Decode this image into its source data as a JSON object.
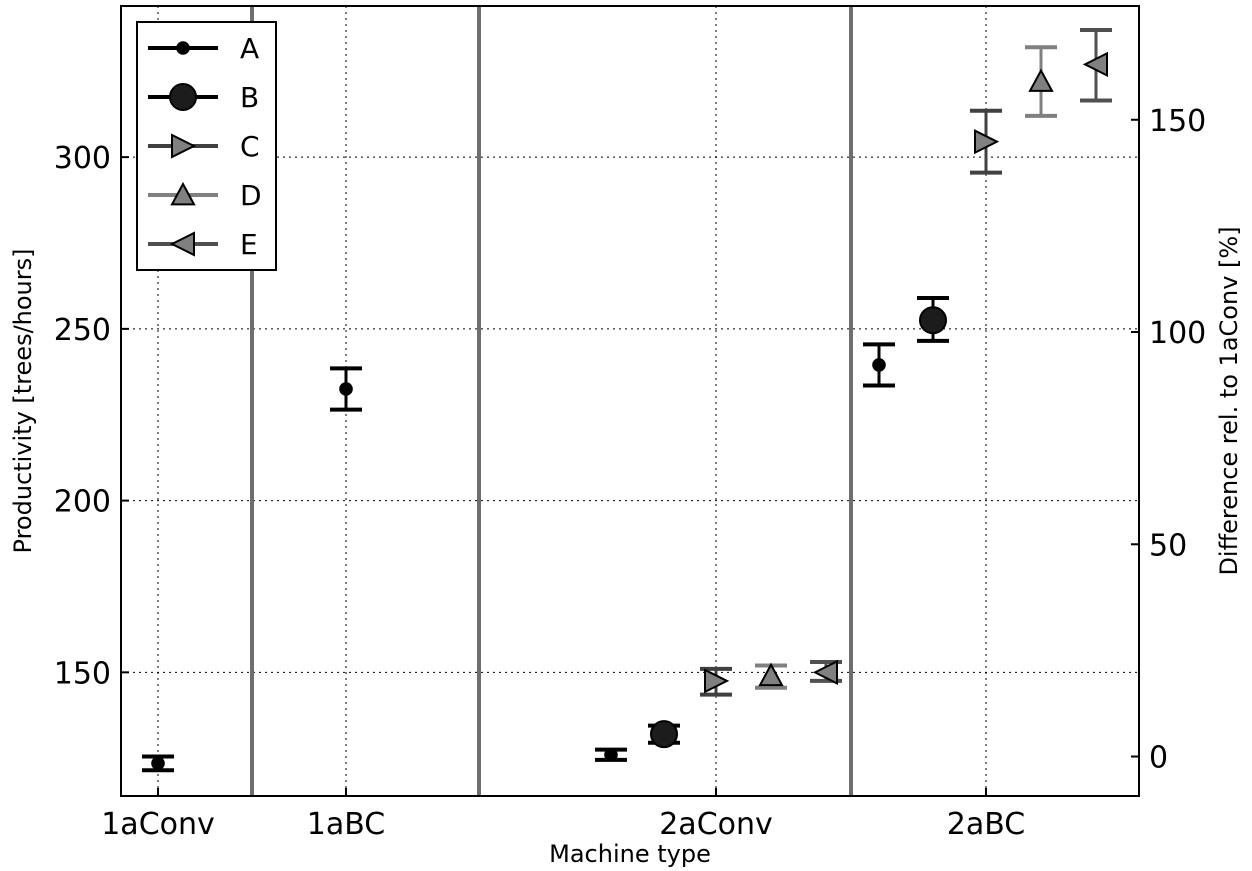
{
  "chart_data": {
    "type": "scatter",
    "xlabel": "Machine type",
    "ylabel_left": "Productivity [trees/hours]",
    "ylabel_right": "Difference rel. to 1aConv [%]",
    "categories": [
      "1aConv",
      "1aBC",
      "2aConv",
      "2aBC"
    ],
    "ylim_left": [
      114,
      344
    ],
    "yticks_left": [
      150,
      200,
      250,
      300
    ],
    "ylim_right": [
      -9.3,
      176.8
    ],
    "yticks_right": [
      0,
      50,
      100,
      150
    ],
    "grid": true,
    "legend_position": "top-left",
    "category_separators": [
      "between 1aConv and 1aBC",
      "between 1aBC and 2aConv",
      "between 2aConv and 2aBC"
    ],
    "series": [
      {
        "name": "A",
        "marker": "dot",
        "color": "#000000",
        "points": [
          {
            "category": "1aConv",
            "y": 123.5,
            "err_low": 121.5,
            "err_high": 125.5
          },
          {
            "category": "1aBC",
            "y": 232.5,
            "err_low": 226.5,
            "err_high": 238.5
          },
          {
            "category": "2aConv",
            "y": 126,
            "err_low": 124.5,
            "err_high": 127.5
          },
          {
            "category": "2aBC",
            "y": 239.5,
            "err_low": 233.5,
            "err_high": 245.5
          }
        ]
      },
      {
        "name": "B",
        "marker": "circle",
        "color": "#1c1c1c",
        "points": [
          {
            "category": "2aConv",
            "y": 132,
            "err_low": 129.5,
            "err_high": 134.5
          },
          {
            "category": "2aBC",
            "y": 252.5,
            "err_low": 246.5,
            "err_high": 259
          }
        ]
      },
      {
        "name": "C",
        "marker": "triangle-right",
        "color": "#404040",
        "points": [
          {
            "category": "2aConv",
            "y": 147.5,
            "err_low": 143.5,
            "err_high": 151
          },
          {
            "category": "2aBC",
            "y": 304.5,
            "err_low": 295.5,
            "err_high": 313.5
          }
        ]
      },
      {
        "name": "D",
        "marker": "triangle-up",
        "color": "#808080",
        "points": [
          {
            "category": "2aConv",
            "y": 149,
            "err_low": 145.5,
            "err_high": 152
          },
          {
            "category": "2aBC",
            "y": 322,
            "err_low": 312,
            "err_high": 332
          }
        ]
      },
      {
        "name": "E",
        "marker": "triangle-left",
        "color": "#505050",
        "points": [
          {
            "category": "2aConv",
            "y": 150,
            "err_low": 147.5,
            "err_high": 153
          },
          {
            "category": "2aBC",
            "y": 327,
            "err_low": 316.5,
            "err_high": 337
          }
        ]
      }
    ]
  }
}
